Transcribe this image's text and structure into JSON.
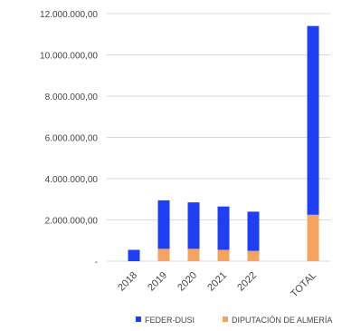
{
  "chart_data": {
    "type": "bar",
    "stacked": true,
    "categories": [
      "2018",
      "2019",
      "2020",
      "2021",
      "2022",
      "TOTAL"
    ],
    "series": [
      {
        "name": "DIPUTACIÓN DE ALMERÍA",
        "color": "#f4a460",
        "values": [
          0,
          600000,
          600000,
          550000,
          500000,
          2250000
        ]
      },
      {
        "name": "FEDER-DUSI",
        "color": "#1f3ff0",
        "values": [
          550000,
          2350000,
          2250000,
          2100000,
          1900000,
          9150000
        ]
      }
    ],
    "ylim": [
      0,
      12000000
    ],
    "yticks": [
      "12.000.000,00",
      "10.000.000,00",
      "8.000.000,00",
      "6.000.000,00",
      "4.000.000,00",
      "2.000.000,00",
      "-"
    ],
    "ytick_values": [
      12000000,
      10000000,
      8000000,
      6000000,
      4000000,
      2000000,
      0
    ],
    "grid": true,
    "legend_position": "bottom",
    "title": "",
    "xlabel": "",
    "ylabel": ""
  }
}
